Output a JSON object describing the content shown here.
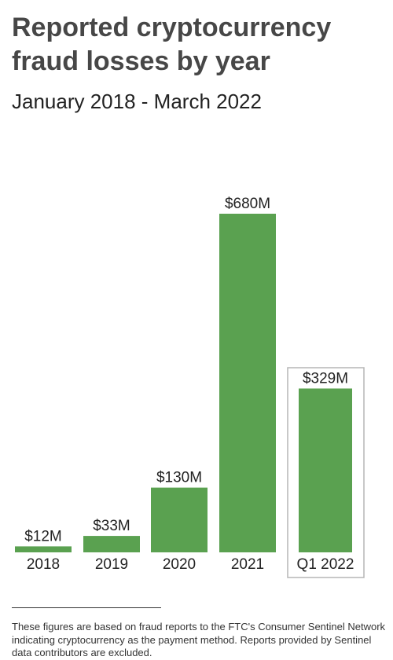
{
  "chart_data": {
    "type": "bar",
    "title": "Reported cryptocurrency fraud losses by year",
    "subtitle": "January 2018 - March 2022",
    "categories": [
      "2018",
      "2019",
      "2020",
      "2021",
      "Q1 2022"
    ],
    "values": [
      12,
      33,
      130,
      680,
      329
    ],
    "value_labels": [
      "$12M",
      "$33M",
      "$130M",
      "$680M",
      "$329M"
    ],
    "color": "#5aa150",
    "footnote": "These figures are based on fraud reports to the FTC's Consumer Sentinel Network indicating cryptocurrency as the payment method. Reports provided by Sentinel data contributors are excluded."
  }
}
